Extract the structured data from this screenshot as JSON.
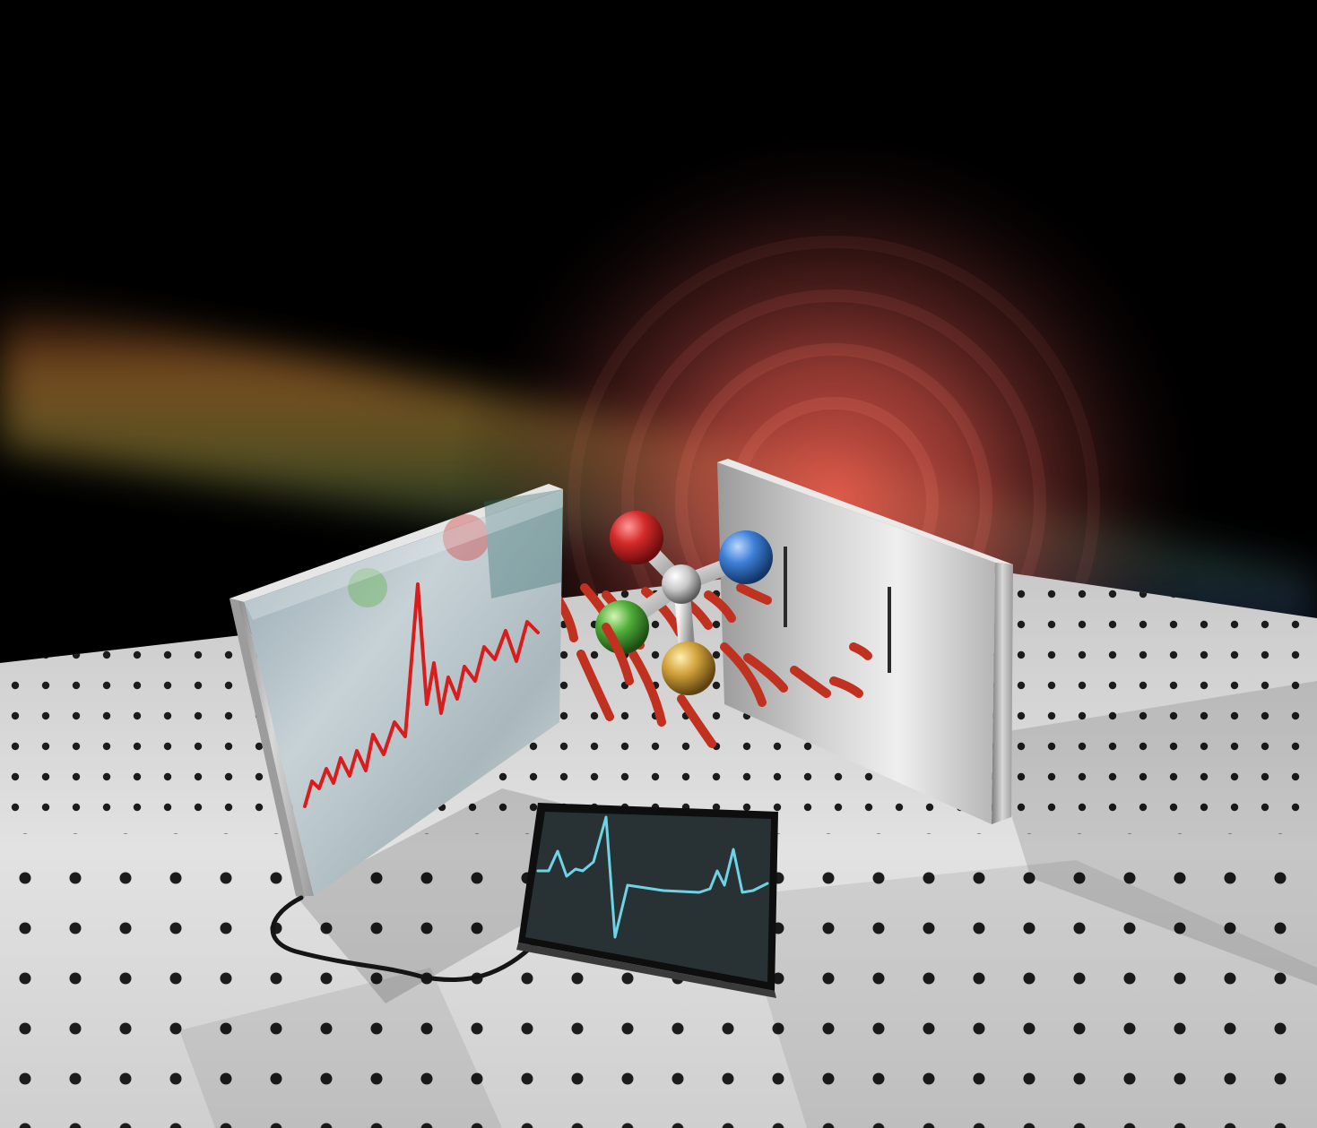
{
  "illustration": {
    "colors": {
      "background": "#000000",
      "table_surface": "#d9d9d9",
      "table_hole": "#1a1a1a",
      "red_glow": "#e0564a",
      "trace_red": "#d91c1c",
      "trace_cyan": "#6fd3e6",
      "wave_segment": "#c0311f",
      "atom_red": "#d42a2a",
      "atom_blue": "#3d7fd6",
      "atom_green": "#4fae3a",
      "atom_gold": "#d2a23a",
      "atom_center": "#c8c8c8",
      "monitor_screen": "#283234"
    },
    "icons": [
      "left-mirror-panel-icon",
      "right-slit-panel-icon",
      "molecule-icon",
      "monitor-icon",
      "cable-icon"
    ]
  }
}
